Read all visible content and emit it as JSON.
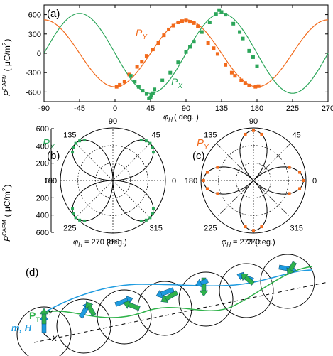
{
  "colors": {
    "px": "#2ca65a",
    "py": "#f26a1b",
    "arrow_blue": "#1e9be0",
    "arrow_green": "#2fb24a",
    "axis": "#000000"
  },
  "chart_data": [
    {
      "panel": "(a)",
      "type": "line",
      "xlabel": "φH ( deg. )",
      "ylabel": "P^CAFM ( μC/m² )",
      "xlim": [
        -90,
        270
      ],
      "ylim": [
        -750,
        750
      ],
      "xticks": [
        -90,
        -45,
        0,
        45,
        90,
        135,
        180,
        225,
        270
      ],
      "yticks": [
        -600,
        -300,
        0,
        300,
        600
      ],
      "series": [
        {
          "name": "PY",
          "kind": "fit",
          "amplitude": 520,
          "phase_deg": 0,
          "form": "-A*cos(2*phi)"
        },
        {
          "name": "PX",
          "kind": "fit",
          "amplitude": 620,
          "phase_deg": 45,
          "form": "-A*cos(2*(phi-45))"
        },
        {
          "name": "PY",
          "kind": "data",
          "x": [
            2,
            6,
            12,
            18,
            28,
            34,
            40,
            48,
            55,
            62,
            68,
            74,
            80,
            85,
            90,
            95,
            100,
            105,
            110,
            118,
            125,
            130,
            140,
            148,
            152,
            160,
            165,
            170,
            178,
            182
          ],
          "y": [
            -520,
            -490,
            -440,
            -330,
            -210,
            -130,
            -40,
            60,
            160,
            280,
            370,
            430,
            480,
            500,
            510,
            490,
            470,
            420,
            330,
            160,
            80,
            -10,
            -180,
            -300,
            -350,
            -420,
            -460,
            -500,
            -520,
            -510
          ]
        },
        {
          "name": "PX",
          "kind": "data",
          "x": [
            20,
            25,
            30,
            35,
            40,
            43,
            45,
            46,
            48,
            50,
            60,
            70,
            80,
            90,
            95,
            100,
            110,
            120,
            128,
            132,
            135,
            140,
            150,
            158,
            162,
            170,
            175,
            180
          ],
          "y": [
            -350,
            -440,
            -520,
            -580,
            -630,
            -700,
            -690,
            -650,
            -620,
            -560,
            -420,
            -300,
            -140,
            20,
            100,
            180,
            330,
            480,
            610,
            670,
            640,
            600,
            460,
            330,
            230,
            40,
            -60,
            -200
          ]
        }
      ],
      "series_labels": [
        "PY",
        "PX"
      ]
    },
    {
      "panel": "(b)",
      "type": "scatter",
      "coordinates": "polar",
      "title": "PX",
      "angle_ticks": [
        "90",
        "45",
        "0",
        "315",
        "270",
        "225",
        "180",
        "135"
      ],
      "radial_ticks": [
        200,
        400,
        600
      ],
      "footer": "φH = 270 (deg.)",
      "amplitude": 620,
      "form": "|A*cos(2*(phi-45))| four-lobe"
    },
    {
      "panel": "(c)",
      "type": "scatter",
      "coordinates": "polar",
      "title": "PY",
      "angle_ticks": [
        "90",
        "45",
        "0",
        "315",
        "270",
        "225",
        "180",
        "135"
      ],
      "footer": "φH = 270 (deg.)",
      "amplitude": 520,
      "form": "|A*cos(2*phi)| four-lobe"
    }
  ],
  "labels": {
    "panel_a": "(a)",
    "panel_b": "(b)",
    "panel_c": "(c)",
    "panel_d": "(d)",
    "py_label": "P",
    "py_sub": "Y",
    "px_label": "P",
    "px_sub": "X",
    "a_xlabel_phi": "φ",
    "a_xlabel_sub": "H",
    "a_xlabel_unit": "( deg. )",
    "a_ylabel": "P",
    "a_ylabel_sup": "CAFM",
    "a_ylabel_unit": "( μC/m",
    "a_ylabel_unit_sup": "2",
    "a_ylabel_unit_end": ")",
    "b_title": "P",
    "b_title_sub": "X",
    "c_title": "P",
    "c_title_sub": "Y",
    "b_ylabel": "P",
    "b_ylabel_sup": "CAFM",
    "b_ylabel_unit": "( μC/m",
    "b_ylabel_unit_sup": "2",
    "b_ylabel_unit_end": ")",
    "footer_phi": "φ",
    "footer_sub": "H",
    "footer_text": " = 270 (deg.)",
    "d_pt": "P",
    "d_pt_sub": "T",
    "d_y": "Y",
    "d_x": "X",
    "d_mh": "m, H"
  }
}
